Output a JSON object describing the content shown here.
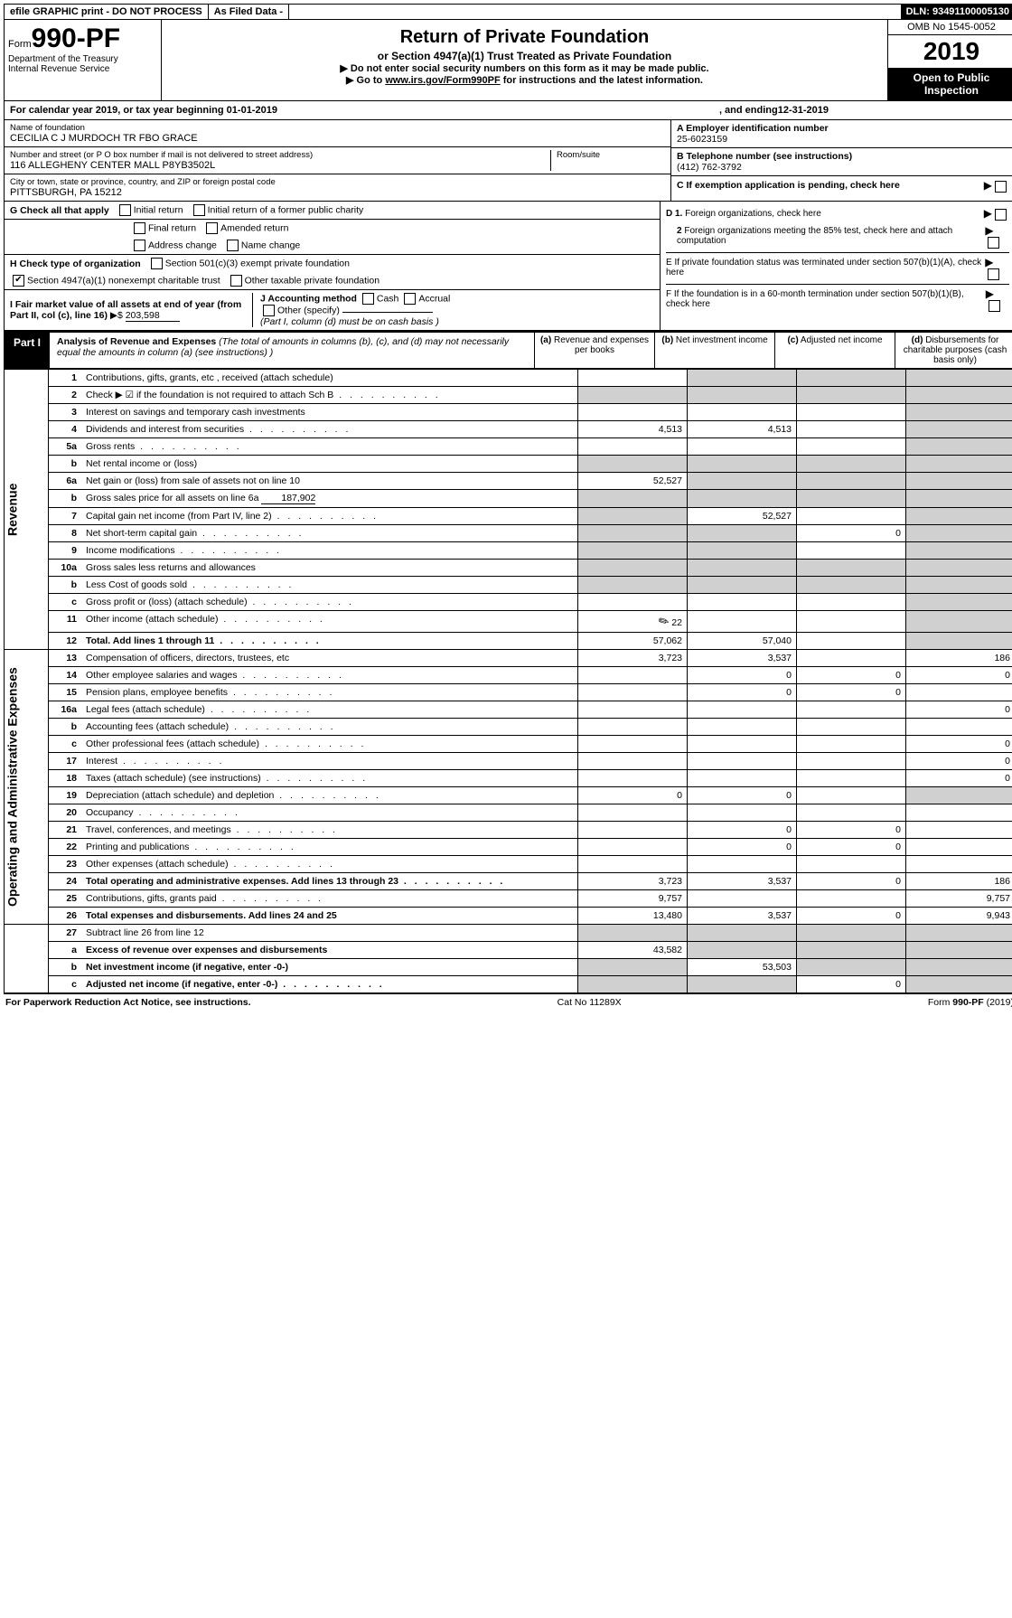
{
  "top_bar": {
    "efile": "efile GRAPHIC print - DO NOT PROCESS",
    "as_filed": "As Filed Data -",
    "dln_label": "DLN:",
    "dln": "93491100005130"
  },
  "header": {
    "form_prefix": "Form",
    "form_number": "990-PF",
    "dept": "Department of the Treasury",
    "irs": "Internal Revenue Service",
    "title": "Return of Private Foundation",
    "subtitle": "or Section 4947(a)(1) Trust Treated as Private Foundation",
    "instr1": "▶ Do not enter social security numbers on this form as it may be made public.",
    "instr2_pre": "▶ Go to ",
    "instr2_link": "www.irs.gov/Form990PF",
    "instr2_post": " for instructions and the latest information.",
    "omb": "OMB No 1545-0052",
    "year": "2019",
    "open_pub": "Open to Public Inspection"
  },
  "cal_year": {
    "pre": "For calendar year 2019, or tax year beginning ",
    "begin": "01-01-2019",
    "mid": ", and ending ",
    "end": "12-31-2019"
  },
  "info": {
    "name_lbl": "Name of foundation",
    "name_val": "CECILIA C J MURDOCH TR FBO GRACE",
    "addr_lbl": "Number and street (or P O  box number if mail is not delivered to street address)",
    "addr_val": "116 ALLEGHENY CENTER MALL P8YB3502L",
    "room_lbl": "Room/suite",
    "city_lbl": "City or town, state or province, country, and ZIP or foreign postal code",
    "city_val": "PITTSBURGH, PA  15212",
    "a_lbl": "A Employer identification number",
    "a_val": "25-6023159",
    "b_lbl": "B Telephone number (see instructions)",
    "b_val": "(412) 762-3792",
    "c_lbl": "C If exemption application is pending, check here"
  },
  "g": {
    "label": "G Check all that apply",
    "opts": [
      "Initial return",
      "Initial return of a former public charity",
      "Final return",
      "Amended return",
      "Address change",
      "Name change"
    ]
  },
  "h": {
    "label": "H Check type of organization",
    "opt1": "Section 501(c)(3) exempt private foundation",
    "opt2": "Section 4947(a)(1) nonexempt charitable trust",
    "opt3": "Other taxable private foundation"
  },
  "i": {
    "label": "I Fair market value of all assets at end of year (from Part II, col  (c), line 16)",
    "arrow": "▶$",
    "val": "203,598"
  },
  "j": {
    "label": "J Accounting method",
    "cash": "Cash",
    "accrual": "Accrual",
    "other": "Other (specify)",
    "note": "(Part I, column (d) must be on cash basis )"
  },
  "d_block": {
    "d1": "D 1. Foreign organizations, check here",
    "d2": "2 Foreign organizations meeting the 85% test, check here and attach computation",
    "e": "E  If private foundation status was terminated under section 507(b)(1)(A), check here",
    "f": "F  If the foundation is in a 60-month termination under section 507(b)(1)(B), check here"
  },
  "part1": {
    "label": "Part I",
    "title": "Analysis of Revenue and Expenses",
    "note": "(The total of amounts in columns (b), (c), and (d) may not necessarily equal the amounts in column (a) (see instructions) )",
    "col_a": "(a) Revenue and expenses per books",
    "col_b": "(b) Net investment income",
    "col_c": "(c) Adjusted net income",
    "col_d": "(d) Disbursements for charitable purposes (cash basis only)"
  },
  "side_labels": {
    "revenue": "Revenue",
    "expenses": "Operating and Administrative Expenses"
  },
  "rows": [
    {
      "n": "1",
      "d": "Contributions, gifts, grants, etc , received (attach schedule)"
    },
    {
      "n": "2",
      "d": "Check ▶ ☑ if the foundation is not required to attach Sch B",
      "dots": true
    },
    {
      "n": "3",
      "d": "Interest on savings and temporary cash investments"
    },
    {
      "n": "4",
      "d": "Dividends and interest from securities",
      "a": "4,513",
      "b": "4,513",
      "dots": true
    },
    {
      "n": "5a",
      "d": "Gross rents",
      "dots": true
    },
    {
      "n": "b",
      "d": "Net rental income or (loss)"
    },
    {
      "n": "6a",
      "d": "Net gain or (loss) from sale of assets not on line 10",
      "a": "52,527"
    },
    {
      "n": "b",
      "d": "Gross sales price for all assets on line 6a",
      "inline_val": "187,902"
    },
    {
      "n": "7",
      "d": "Capital gain net income (from Part IV, line 2)",
      "b": "52,527",
      "dots": true
    },
    {
      "n": "8",
      "d": "Net short-term capital gain",
      "c": "0",
      "dots": true
    },
    {
      "n": "9",
      "d": "Income modifications",
      "dots": true
    },
    {
      "n": "10a",
      "d": "Gross sales less returns and allowances"
    },
    {
      "n": "b",
      "d": "Less  Cost of goods sold",
      "dots": true
    },
    {
      "n": "c",
      "d": "Gross profit or (loss) (attach schedule)",
      "dots": true
    },
    {
      "n": "11",
      "d": "Other income (attach schedule)",
      "a": "22",
      "icon": true,
      "dots": true
    },
    {
      "n": "12",
      "d": "Total. Add lines 1 through 11",
      "a": "57,062",
      "b": "57,040",
      "bold": true,
      "dots": true
    }
  ],
  "exp_rows": [
    {
      "n": "13",
      "d": "Compensation of officers, directors, trustees, etc",
      "a": "3,723",
      "b": "3,537",
      "dd": "186"
    },
    {
      "n": "14",
      "d": "Other employee salaries and wages",
      "b": "0",
      "c": "0",
      "dd": "0",
      "dots": true
    },
    {
      "n": "15",
      "d": "Pension plans, employee benefits",
      "b": "0",
      "c": "0",
      "dots": true
    },
    {
      "n": "16a",
      "d": "Legal fees (attach schedule)",
      "dd": "0",
      "dots": true
    },
    {
      "n": "b",
      "d": "Accounting fees (attach schedule)",
      "dots": true
    },
    {
      "n": "c",
      "d": "Other professional fees (attach schedule)",
      "dd": "0",
      "dots": true
    },
    {
      "n": "17",
      "d": "Interest",
      "dd": "0",
      "dots": true
    },
    {
      "n": "18",
      "d": "Taxes (attach schedule) (see instructions)",
      "dd": "0",
      "dots": true
    },
    {
      "n": "19",
      "d": "Depreciation (attach schedule) and depletion",
      "a": "0",
      "b": "0",
      "dots": true
    },
    {
      "n": "20",
      "d": "Occupancy",
      "dots": true
    },
    {
      "n": "21",
      "d": "Travel, conferences, and meetings",
      "b": "0",
      "c": "0",
      "dots": true
    },
    {
      "n": "22",
      "d": "Printing and publications",
      "b": "0",
      "c": "0",
      "dots": true
    },
    {
      "n": "23",
      "d": "Other expenses (attach schedule)",
      "dots": true
    },
    {
      "n": "24",
      "d": "Total operating and administrative expenses. Add lines 13 through 23",
      "a": "3,723",
      "b": "3,537",
      "c": "0",
      "dd": "186",
      "bold": true,
      "dots": true
    },
    {
      "n": "25",
      "d": "Contributions, gifts, grants paid",
      "a": "9,757",
      "dd": "9,757",
      "dots": true
    },
    {
      "n": "26",
      "d": "Total expenses and disbursements. Add lines 24 and 25",
      "a": "13,480",
      "b": "3,537",
      "c": "0",
      "dd": "9,943",
      "bold": true
    }
  ],
  "net_rows": [
    {
      "n": "27",
      "d": "Subtract line 26 from line 12"
    },
    {
      "n": "a",
      "d": "Excess of revenue over expenses and disbursements",
      "a": "43,582",
      "bold": true
    },
    {
      "n": "b",
      "d": "Net investment income (if negative, enter -0-)",
      "b": "53,503",
      "bold": true
    },
    {
      "n": "c",
      "d": "Adjusted net income (if negative, enter -0-)",
      "c": "0",
      "bold": true,
      "dots": true
    }
  ],
  "footer": {
    "left": "For Paperwork Reduction Act Notice, see instructions.",
    "mid": "Cat No 11289X",
    "right_pre": "Form ",
    "right_form": "990-PF",
    "right_post": " (2019)"
  }
}
